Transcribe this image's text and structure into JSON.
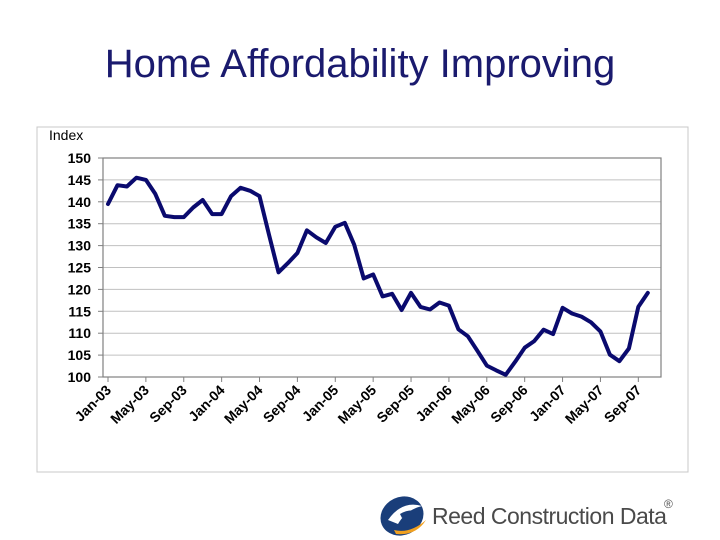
{
  "slide": {
    "title": "Home Affordability Improving"
  },
  "brand": {
    "name": "Reed Construction Data",
    "registered_mark": "®",
    "logo_icon": "reed-e-swoosh-icon",
    "logo_color": "#1a3e7a",
    "accent_color": "#f0a020"
  },
  "chart_data": {
    "type": "line",
    "title": "",
    "ylabel": "Index",
    "xlabel": "",
    "ylim": [
      100,
      150
    ],
    "yticks": [
      100,
      105,
      110,
      115,
      120,
      125,
      130,
      135,
      140,
      145,
      150
    ],
    "grid": true,
    "line_color": "#0a0a6e",
    "x_tick_labels": [
      "Jan-03",
      "May-03",
      "Sep-03",
      "Jan-04",
      "May-04",
      "Sep-04",
      "Jan-05",
      "May-05",
      "Sep-05",
      "Jan-06",
      "May-06",
      "Sep-06",
      "Jan-07",
      "May-07",
      "Sep-07"
    ],
    "x_start": "Jan-03",
    "x_end": "Dec-07",
    "x_tick_interval_months": 4,
    "series": [
      {
        "values": [
          139.5,
          143.8,
          143.5,
          145.5,
          145.0,
          141.8,
          136.8,
          136.5,
          136.5,
          138.7,
          140.4,
          137.2,
          137.2,
          141.3,
          143.2,
          142.5,
          141.3,
          132.5,
          123.9,
          126.0,
          128.3,
          133.5,
          131.9,
          130.6,
          134.3,
          135.2,
          130.2,
          122.5,
          123.4,
          118.4,
          119.0,
          115.3,
          119.2,
          116.0,
          115.4,
          117.0,
          116.3,
          110.9,
          109.3,
          106.0,
          102.6,
          101.5,
          100.5,
          103.5,
          106.7,
          108.2,
          110.8,
          109.8,
          115.8,
          114.5,
          113.8,
          112.5,
          110.4,
          105.1,
          103.6,
          106.5,
          116.0,
          119.2
        ]
      }
    ]
  }
}
